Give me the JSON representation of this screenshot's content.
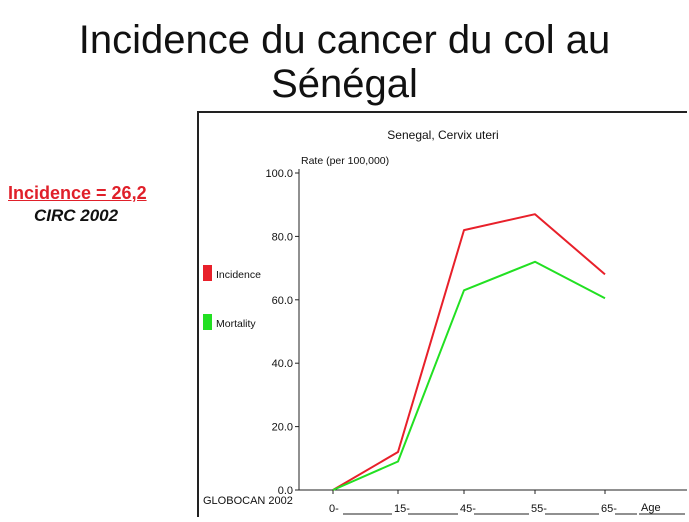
{
  "slide": {
    "title_line1": "Incidence du cancer du col au",
    "title_line2": "Sénégal",
    "incidence_label": "Incidence = 26,2",
    "source_label": "CIRC 2002"
  },
  "chart_data": {
    "type": "line",
    "title": "Senegal, Cervix uteri",
    "ylabel": "Rate (per 100,000)",
    "xlabel": "Age",
    "categories": [
      "0-",
      "15-",
      "45-",
      "55-",
      "65-"
    ],
    "ylim": [
      0,
      100
    ],
    "yticks": [
      "0.0",
      "20.0",
      "40.0",
      "60.0",
      "80.0",
      "100.0"
    ],
    "legend_position": "left",
    "footer": "GLOBOCAN 2002",
    "grid": false,
    "series": [
      {
        "name": "Incidence",
        "color": "#e8202a",
        "values": [
          0,
          12,
          82,
          87,
          68
        ]
      },
      {
        "name": "Mortality",
        "color": "#22e022",
        "values": [
          0,
          9,
          63,
          72,
          60.5
        ]
      }
    ]
  }
}
